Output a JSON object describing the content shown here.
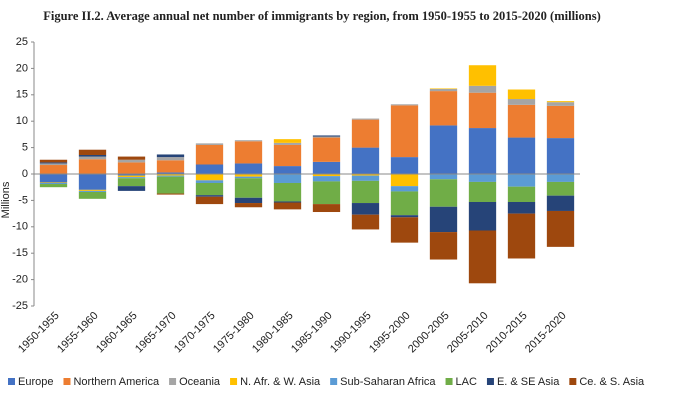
{
  "chart_data": {
    "type": "stacked-bar",
    "title": "Figure II.2. Average annual net number of immigrants by region, from 1950-1955 to 2015-2020 (millions)",
    "y_label": "Millions",
    "categories": [
      "1950-1955",
      "1955-1960",
      "1960-1965",
      "1965-1970",
      "1970-1975",
      "1975-1980",
      "1980-1985",
      "1985-1990",
      "1990-1995",
      "1995-2000",
      "2000-2005",
      "2005-2010",
      "2010-2015",
      "2015-2020"
    ],
    "series": [
      {
        "name": "Europe",
        "color": "#4472c4",
        "values": [
          -1.6,
          -3.0,
          -0.3,
          0.3,
          1.8,
          2.0,
          1.5,
          2.3,
          5.0,
          3.2,
          9.2,
          8.7,
          6.9,
          6.8
        ]
      },
      {
        "name": "Northern America",
        "color": "#ed7d31",
        "values": [
          1.7,
          2.8,
          2.2,
          2.3,
          3.7,
          4.2,
          4.0,
          4.6,
          5.3,
          9.8,
          6.5,
          6.7,
          6.2,
          6.1
        ]
      },
      {
        "name": "Oceania",
        "color": "#a5a5a5",
        "values": [
          0.3,
          0.5,
          0.5,
          0.6,
          0.3,
          0.2,
          0.4,
          0.2,
          0.2,
          0.2,
          0.4,
          1.3,
          1.1,
          0.7
        ]
      },
      {
        "name": "N. Afr. & W. Asia",
        "color": "#ffc000",
        "values": [
          -0.1,
          -0.2,
          -0.3,
          -0.3,
          -1.2,
          -0.5,
          0.7,
          -0.4,
          -0.3,
          -2.3,
          0.1,
          3.9,
          1.8,
          0.2
        ]
      },
      {
        "name": "Sub-Saharan Africa",
        "color": "#5b9bd5",
        "values": [
          -0.2,
          -0.2,
          -0.2,
          -0.2,
          -0.5,
          -0.3,
          -1.7,
          -1.0,
          -1.0,
          -1.0,
          -1.0,
          -1.5,
          -2.4,
          -1.5
        ]
      },
      {
        "name": "LAC",
        "color": "#70ad47",
        "values": [
          -0.6,
          -1.3,
          -1.5,
          -3.2,
          -2.3,
          -3.7,
          -3.5,
          -4.3,
          -4.2,
          -4.5,
          -5.2,
          -3.8,
          -2.9,
          -2.6
        ]
      },
      {
        "name": "E. & SE Asia",
        "color": "#264478",
        "values": [
          0.2,
          0.3,
          -0.9,
          0.5,
          -0.3,
          -1.0,
          -0.2,
          0.2,
          -2.2,
          -0.4,
          -4.8,
          -5.4,
          -2.2,
          -2.9
        ]
      },
      {
        "name": "Ce. & S. Asia",
        "color": "#9e480e",
        "values": [
          0.5,
          1.0,
          0.6,
          -0.2,
          -1.4,
          -0.8,
          -1.3,
          -1.5,
          -2.8,
          -4.8,
          -5.2,
          -10.0,
          -8.5,
          -6.8
        ]
      }
    ],
    "ylim": [
      -25,
      25
    ],
    "yticks": [
      -25,
      -20,
      -15,
      -10,
      -5,
      0,
      5,
      10,
      15,
      20,
      25
    ],
    "grid": false,
    "legend": "bottom"
  }
}
